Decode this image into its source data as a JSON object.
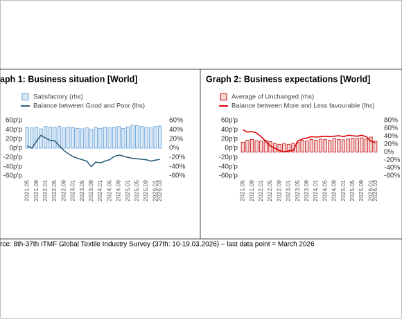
{
  "chart_data": [
    {
      "type": "combo",
      "title": "aph 1: Business situation [World]",
      "categories": [
        "2021.05",
        null,
        "2021.09",
        null,
        "2022.01",
        null,
        "2022.05",
        null,
        "2022.09",
        null,
        "2023.01",
        null,
        "2023.05",
        null,
        "2023.09",
        null,
        "2024.01",
        null,
        "2024.05",
        null,
        "2024.09",
        null,
        "2025.01",
        null,
        "2025.05",
        null,
        "2025.09",
        null,
        "2026.01",
        "2026.03"
      ],
      "series": [
        {
          "name": "Satisfactory (rhs)",
          "type": "bar",
          "axis": "y2",
          "color": "#5b9bd5",
          "fill": "#dbe9f7",
          "values": [
            45,
            44,
            46,
            42,
            47,
            46,
            45,
            47,
            44,
            46,
            45,
            43,
            42,
            44,
            41,
            45,
            43,
            46,
            44,
            45,
            47,
            43,
            46,
            50,
            49,
            47,
            45,
            44,
            47,
            48
          ]
        },
        {
          "name": "Balance between Good and Poor (lhs)",
          "type": "line",
          "color": "#2e5e7a",
          "values": [
            5,
            0,
            15,
            28,
            22,
            17,
            16,
            5,
            -5,
            -12,
            -18,
            -22,
            -25,
            -28,
            -40,
            -30,
            -32,
            -28,
            -25,
            -18,
            -15,
            -17,
            -20,
            -22,
            -23,
            -24,
            -25,
            -28,
            -26,
            -24
          ]
        }
      ],
      "ylim": [
        -60,
        60
      ],
      "yticks": [
        {
          "value": 60,
          "label": "60p'p"
        },
        {
          "value": 40,
          "label": "40p'p"
        },
        {
          "value": 20,
          "label": "20p'p"
        },
        {
          "value": 0,
          "label": "0p'p"
        },
        {
          "value": -20,
          "label": "-20p'p"
        },
        {
          "value": -40,
          "label": "-40p'p"
        },
        {
          "value": -60,
          "label": "-60p'p"
        }
      ],
      "y2lim": [
        -60,
        60
      ],
      "y2ticks": [
        {
          "value": 60,
          "label": "60%"
        },
        {
          "value": 40,
          "label": "40%"
        },
        {
          "value": 20,
          "label": "20%"
        },
        {
          "value": 0,
          "label": "0%"
        },
        {
          "value": -20,
          "label": "-20%"
        },
        {
          "value": -40,
          "label": "-40%"
        },
        {
          "value": -60,
          "label": "-60%"
        }
      ]
    },
    {
      "type": "combo",
      "title": "Graph 2: Business expectations [World]",
      "categories": [
        "2021.05",
        null,
        "2021.09",
        null,
        "2022.01",
        null,
        "2022.05",
        null,
        "2022.09",
        null,
        "2023.01",
        null,
        "2023.05",
        null,
        "2023.09",
        null,
        "2024.01",
        null,
        "2024.05",
        null,
        "2024.09",
        null,
        "2025.01",
        null,
        "2025.05",
        null,
        "2025.09",
        null,
        "2026.01",
        "2026.03"
      ],
      "series": [
        {
          "name": "Average of Unchanged (rhs)",
          "type": "bar",
          "axis": "y2",
          "color": "#c00000",
          "fill": "#f6d5d5",
          "values": [
            25,
            30,
            32,
            29,
            28,
            30,
            27,
            22,
            20,
            21,
            20,
            22,
            24,
            30,
            28,
            32,
            30,
            33,
            32,
            30,
            34,
            32,
            31,
            33,
            35,
            34,
            36,
            33,
            38,
            28
          ]
        },
        {
          "name": "Balance between More and Less favourable (lhs)",
          "type": "line",
          "color": "#e00000",
          "values": [
            40,
            35,
            36,
            33,
            25,
            15,
            5,
            0,
            -5,
            -8,
            -6,
            -5,
            15,
            20,
            22,
            25,
            24,
            25,
            26,
            25,
            26,
            27,
            25,
            28,
            27,
            26,
            28,
            25,
            15,
            12
          ]
        }
      ],
      "ylim": [
        -60,
        60
      ],
      "yticks": [
        {
          "value": 60,
          "label": "60p'p"
        },
        {
          "value": 40,
          "label": "40p'p"
        },
        {
          "value": 20,
          "label": "20p'p"
        },
        {
          "value": 0,
          "label": "0p'p"
        },
        {
          "value": -20,
          "label": "-20p'p"
        },
        {
          "value": -40,
          "label": "-40p'p"
        },
        {
          "value": -60,
          "label": "-60p'p"
        }
      ],
      "y2lim": [
        -60,
        80
      ],
      "y2ticks": [
        {
          "value": 80,
          "label": "80%"
        },
        {
          "value": 60,
          "label": "60%"
        },
        {
          "value": 40,
          "label": "40%"
        },
        {
          "value": 20,
          "label": "20%"
        },
        {
          "value": 0,
          "label": "0%"
        },
        {
          "value": -20,
          "label": "-20%"
        },
        {
          "value": -40,
          "label": "-40%"
        },
        {
          "value": -60,
          "label": "-60%"
        }
      ]
    }
  ],
  "source": "rce: 8th-37th ITMF Global Textile Industry Survey (37th: 10-19.03.2026) – last data point = March 2026"
}
